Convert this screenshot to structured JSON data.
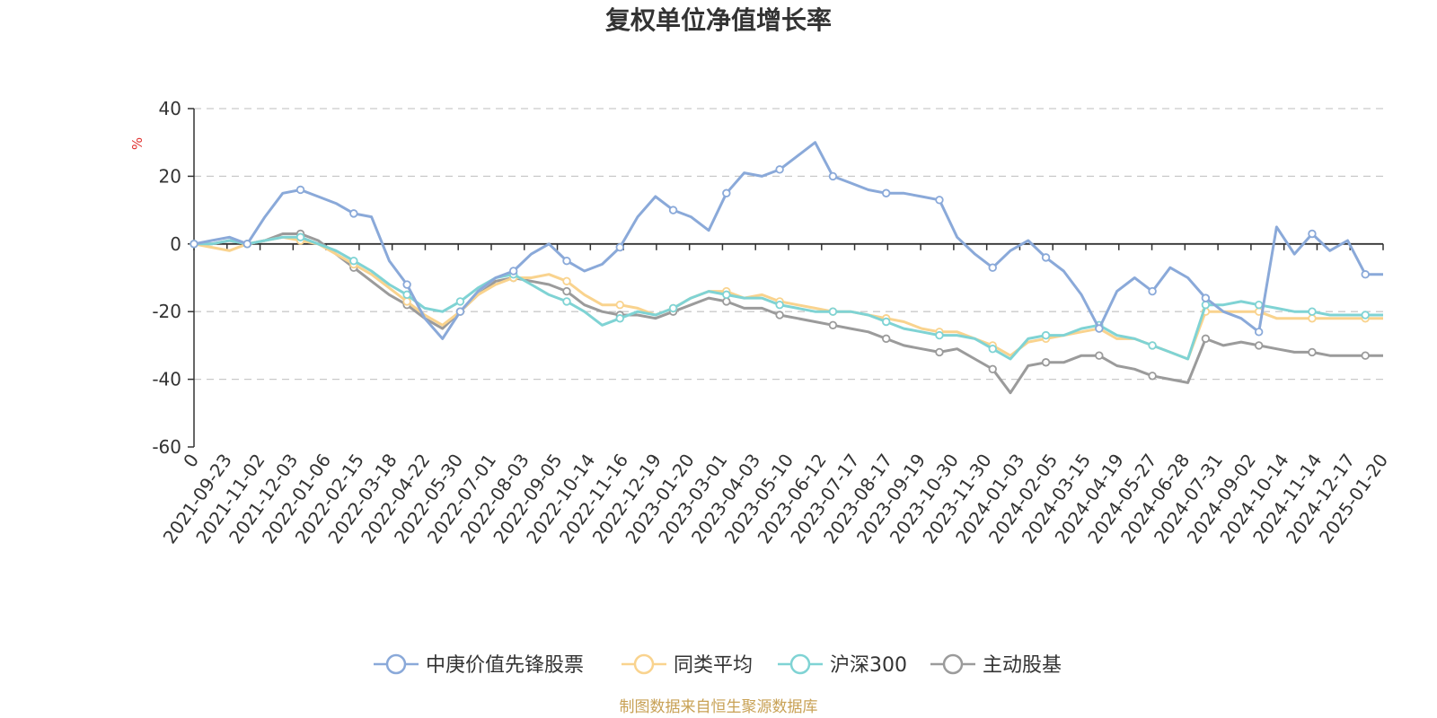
{
  "chart_data": {
    "type": "line",
    "title": "复权单位净值增长率",
    "ylabel": "%",
    "ylim": [
      -60,
      40
    ],
    "yticks": [
      40,
      20,
      0,
      -20,
      -40,
      -60
    ],
    "grid": true,
    "legend_position": "bottom-center",
    "source": "制图数据来自恒生聚源数据库",
    "x_tick_labels": [
      "0",
      "2021-09-23",
      "2021-11-02",
      "2021-12-03",
      "2022-01-06",
      "2022-02-15",
      "2022-03-18",
      "2022-04-22",
      "2022-05-30",
      "2022-07-01",
      "2022-08-03",
      "2022-09-05",
      "2022-10-14",
      "2022-11-16",
      "2022-12-19",
      "2023-01-20",
      "2023-03-01",
      "2023-04-03",
      "2023-05-10",
      "2023-06-12",
      "2023-07-17",
      "2023-08-17",
      "2023-09-19",
      "2023-10-30",
      "2023-11-30",
      "2024-01-03",
      "2024-02-05",
      "2024-03-15",
      "2024-04-19",
      "2024-05-27",
      "2024-06-28",
      "2024-07-31",
      "2024-09-02",
      "2024-10-14",
      "2024-11-14",
      "2024-12-17",
      "2025-01-20"
    ],
    "series": [
      {
        "name": "中庚价值先锋股票",
        "color": "#8aa9d9",
        "values": [
          0,
          1,
          2,
          0,
          8,
          15,
          16,
          14,
          12,
          9,
          8,
          -5,
          -12,
          -22,
          -28,
          -20,
          -14,
          -10,
          -8,
          -3,
          0,
          -5,
          -8,
          -6,
          -1,
          8,
          14,
          10,
          8,
          4,
          15,
          21,
          20,
          22,
          26,
          30,
          20,
          18,
          16,
          15,
          15,
          14,
          13,
          2,
          -3,
          -7,
          -2,
          1,
          -4,
          -8,
          -15,
          -25,
          -14,
          -10,
          -14,
          -7,
          -10,
          -16,
          -20,
          -22,
          -26,
          5,
          -3,
          3,
          -2,
          1,
          -9,
          -9
        ]
      },
      {
        "name": "同类平均",
        "color": "#f9d38e",
        "values": [
          0,
          -1,
          -2,
          0,
          1,
          2,
          1,
          0,
          -3,
          -6,
          -9,
          -13,
          -17,
          -21,
          -24,
          -20,
          -15,
          -12,
          -10,
          -10,
          -9,
          -11,
          -15,
          -18,
          -18,
          -19,
          -21,
          -19,
          -16,
          -14,
          -14,
          -16,
          -15,
          -17,
          -18,
          -19,
          -20,
          -20,
          -21,
          -22,
          -23,
          -25,
          -26,
          -26,
          -28,
          -30,
          -33,
          -29,
          -28,
          -27,
          -26,
          -25,
          -28,
          -28,
          -30,
          -32,
          -34,
          -20,
          -20,
          -20,
          -20,
          -22,
          -22,
          -22,
          -22,
          -22,
          -22,
          -22
        ]
      },
      {
        "name": "沪深300",
        "color": "#7fd3d4",
        "values": [
          0,
          0,
          1,
          0,
          1,
          2,
          2,
          0,
          -2,
          -5,
          -8,
          -12,
          -15,
          -19,
          -20,
          -17,
          -13,
          -10,
          -9,
          -12,
          -15,
          -17,
          -20,
          -24,
          -22,
          -20,
          -21,
          -19,
          -16,
          -14,
          -15,
          -16,
          -16,
          -18,
          -19,
          -20,
          -20,
          -20,
          -21,
          -23,
          -25,
          -26,
          -27,
          -27,
          -28,
          -31,
          -34,
          -28,
          -27,
          -27,
          -25,
          -24,
          -27,
          -28,
          -30,
          -32,
          -34,
          -18,
          -18,
          -17,
          -18,
          -19,
          -20,
          -20,
          -21,
          -21,
          -21,
          -21
        ]
      },
      {
        "name": "主动股基",
        "color": "#9b9b9b",
        "values": [
          0,
          0,
          1,
          0,
          1,
          3,
          3,
          1,
          -3,
          -7,
          -11,
          -15,
          -18,
          -22,
          -25,
          -20,
          -15,
          -11,
          -10,
          -11,
          -12,
          -14,
          -18,
          -20,
          -21,
          -21,
          -22,
          -20,
          -18,
          -16,
          -17,
          -19,
          -19,
          -21,
          -22,
          -23,
          -24,
          -25,
          -26,
          -28,
          -30,
          -31,
          -32,
          -31,
          -34,
          -37,
          -44,
          -36,
          -35,
          -35,
          -33,
          -33,
          -36,
          -37,
          -39,
          -40,
          -41,
          -28,
          -30,
          -29,
          -30,
          -31,
          -32,
          -32,
          -33,
          -33,
          -33,
          -33
        ]
      }
    ]
  }
}
